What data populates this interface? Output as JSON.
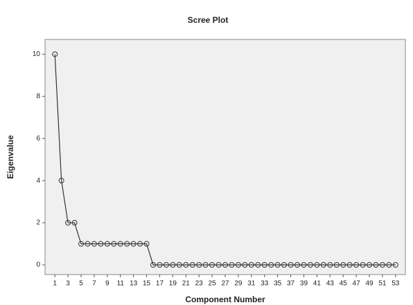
{
  "chart_data": {
    "type": "line",
    "title": "Scree Plot",
    "xlabel": "Component Number",
    "ylabel": "Eigenvalue",
    "x": [
      1,
      2,
      3,
      4,
      5,
      6,
      7,
      8,
      9,
      10,
      11,
      12,
      13,
      14,
      15,
      16,
      17,
      18,
      19,
      20,
      21,
      22,
      23,
      24,
      25,
      26,
      27,
      28,
      29,
      30,
      31,
      32,
      33,
      34,
      35,
      36,
      37,
      38,
      39,
      40,
      41,
      42,
      43,
      44,
      45,
      46,
      47,
      48,
      49,
      50,
      51,
      52,
      53
    ],
    "values": [
      10,
      4,
      2,
      2,
      1,
      1,
      1,
      1,
      1,
      1,
      1,
      1,
      1,
      1,
      1,
      0,
      0,
      0,
      0,
      0,
      0,
      0,
      0,
      0,
      0,
      0,
      0,
      0,
      0,
      0,
      0,
      0,
      0,
      0,
      0,
      0,
      0,
      0,
      0,
      0,
      0,
      0,
      0,
      0,
      0,
      0,
      0,
      0,
      0,
      0,
      0,
      0,
      0
    ],
    "color": "#333333",
    "xlim": [
      -0.5,
      54.5
    ],
    "xticks": [
      1,
      3,
      5,
      7,
      9,
      11,
      13,
      15,
      17,
      19,
      21,
      23,
      25,
      27,
      29,
      31,
      33,
      35,
      37,
      39,
      41,
      43,
      45,
      47,
      49,
      51,
      53
    ],
    "ylim": [
      -0.46,
      10.7
    ],
    "yticks": [
      0,
      2,
      4,
      6,
      8,
      10
    ]
  }
}
